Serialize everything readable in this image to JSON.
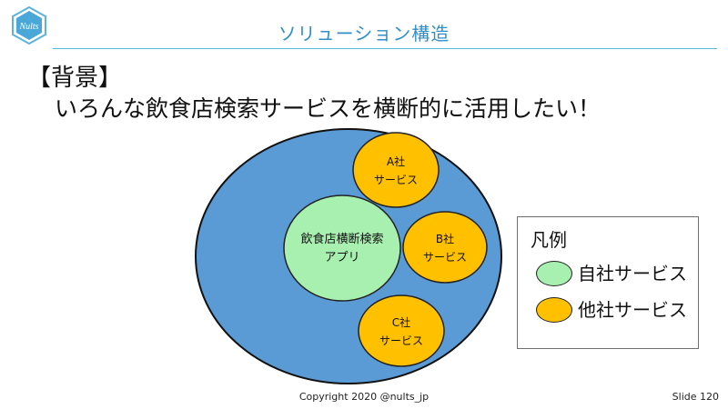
{
  "header": {
    "logo_text": "Nults",
    "title": "ソリューション構造"
  },
  "body": {
    "heading": "【背景】",
    "subheading": "いろんな飲食店検索サービスを横断的に活用したい！"
  },
  "diagram": {
    "app_label_line1": "飲食店横断検索",
    "app_label_line2": "アプリ",
    "service_a_line1": "A社",
    "service_a_line2": "サービス",
    "service_b_line1": "B社",
    "service_b_line2": "サービス",
    "service_c_line1": "C社",
    "service_c_line2": "サービス"
  },
  "legend": {
    "title": "凡例",
    "own_label": "自社サービス",
    "other_label": "他社サービス"
  },
  "colors": {
    "outer_circle": "#5b9bd5",
    "own_service": "#a8f0b0",
    "other_service": "#ffc000",
    "title_accent": "#2f8fc9"
  },
  "footer": {
    "copyright": "Copyright 2020 @nults_jp",
    "slide_number": "Slide 120"
  }
}
